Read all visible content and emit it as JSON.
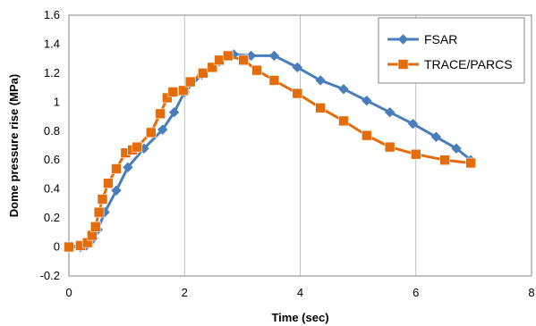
{
  "chart_data": {
    "type": "line",
    "title": "",
    "xlabel": "Time (sec)",
    "ylabel": "Dome pressure rise (MPa)",
    "xlim": [
      0,
      8
    ],
    "ylim": [
      -0.2,
      1.6
    ],
    "x_ticks": [
      0,
      2,
      4,
      6,
      8
    ],
    "y_ticks": [
      -0.2,
      0,
      0.2,
      0.4,
      0.6,
      0.8,
      1,
      1.2,
      1.4,
      1.6
    ],
    "x_tick_labels": [
      "0",
      "2",
      "4",
      "6",
      "8"
    ],
    "y_tick_labels": [
      "-0.2",
      "0",
      "0.2",
      "0.4",
      "0.6",
      "0.8",
      "1",
      "1.2",
      "1.4",
      "1.6"
    ],
    "grid": "vertical",
    "legend_position": "top-right",
    "series": [
      {
        "name": "FSAR",
        "color": "#4a7ebb",
        "marker": "diamond",
        "x": [
          0.0,
          0.2,
          0.3,
          0.35,
          0.42,
          0.5,
          0.62,
          0.82,
          1.02,
          1.3,
          1.62,
          1.82,
          2.0,
          2.3,
          2.6,
          2.85,
          3.15,
          3.55,
          3.95,
          4.35,
          4.75,
          5.15,
          5.55,
          5.95,
          6.35,
          6.7,
          6.95
        ],
        "y": [
          0.0,
          0.0,
          0.01,
          0.03,
          0.06,
          0.12,
          0.24,
          0.39,
          0.55,
          0.68,
          0.81,
          0.93,
          1.07,
          1.19,
          1.28,
          1.33,
          1.32,
          1.32,
          1.24,
          1.15,
          1.09,
          1.01,
          0.93,
          0.85,
          0.76,
          0.68,
          0.6
        ]
      },
      {
        "name": "TRACE/PARCS",
        "color": "#e46c0a",
        "marker": "square",
        "x": [
          0.0,
          0.2,
          0.32,
          0.4,
          0.46,
          0.52,
          0.58,
          0.68,
          0.82,
          0.98,
          1.1,
          1.18,
          1.42,
          1.58,
          1.7,
          1.8,
          1.98,
          2.1,
          2.32,
          2.48,
          2.6,
          2.75,
          3.02,
          3.25,
          3.55,
          3.95,
          4.35,
          4.75,
          5.15,
          5.55,
          6.0,
          6.5,
          6.95
        ],
        "y": [
          0.0,
          0.01,
          0.03,
          0.08,
          0.14,
          0.24,
          0.33,
          0.44,
          0.54,
          0.65,
          0.67,
          0.69,
          0.79,
          0.92,
          1.03,
          1.07,
          1.08,
          1.14,
          1.2,
          1.24,
          1.29,
          1.32,
          1.29,
          1.22,
          1.15,
          1.06,
          0.96,
          0.87,
          0.77,
          0.69,
          0.64,
          0.6,
          0.58
        ]
      }
    ]
  }
}
